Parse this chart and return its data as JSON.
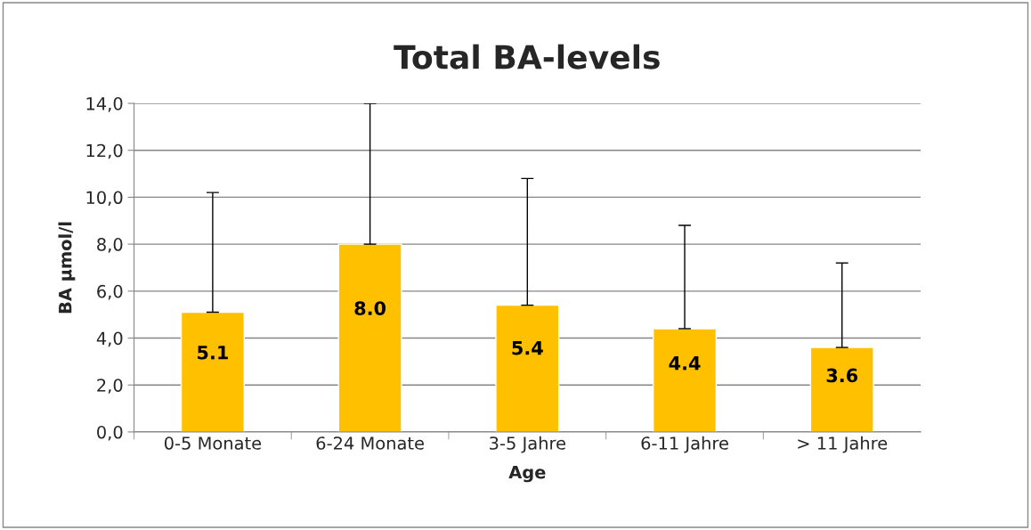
{
  "chart_data": {
    "type": "bar",
    "title": "Total BA-levels",
    "xlabel": "Age",
    "ylabel": "BA µmol/l",
    "categories": [
      "0-5 Monate",
      "6-24 Monate",
      "3-5 Jahre",
      "6-11 Jahre",
      "> 11 Jahre"
    ],
    "values": [
      5.1,
      8.0,
      5.4,
      4.4,
      3.6
    ],
    "color": "#ffc000",
    "errors": [
      [
        5.1,
        10.2
      ],
      [
        8.0,
        14.0
      ],
      [
        5.4,
        10.8
      ],
      [
        4.4,
        8.8
      ],
      [
        3.6,
        7.2
      ]
    ],
    "value_labels": [
      "5.1",
      "8.0",
      "5.4",
      "4.4",
      "3.6"
    ],
    "ylim": [
      0,
      14
    ],
    "yticks": [
      {
        "value": 0,
        "label": "0,0"
      },
      {
        "value": 2,
        "label": "2,0"
      },
      {
        "value": 4,
        "label": "4,0"
      },
      {
        "value": 6,
        "label": "6,0"
      },
      {
        "value": 8,
        "label": "8,0"
      },
      {
        "value": 10,
        "label": "10,0"
      },
      {
        "value": 12,
        "label": "12,0"
      },
      {
        "value": 14,
        "label": "14,0"
      }
    ],
    "grid": "y"
  }
}
